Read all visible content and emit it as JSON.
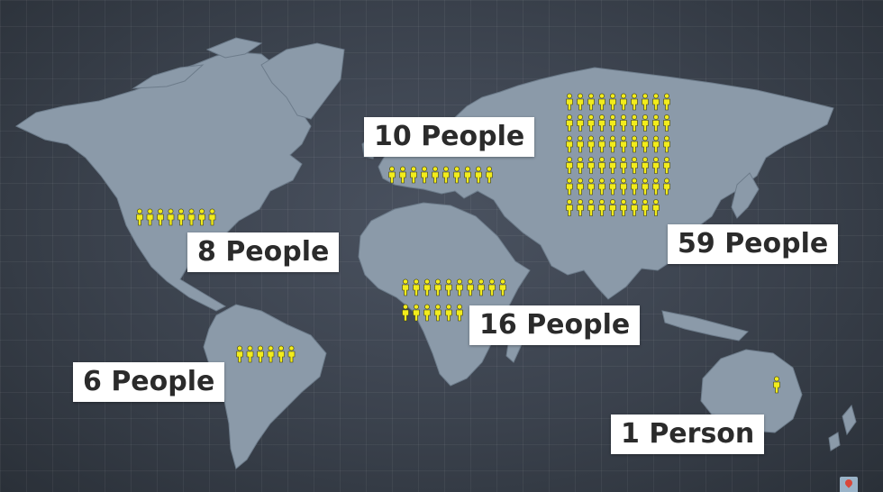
{
  "colors": {
    "person_fill": "#f2ec1c",
    "person_stroke": "#3a3a10",
    "land": "#8b9aa9",
    "background": "#3a414c"
  },
  "icons": {
    "person": "person-icon",
    "map_pin": "map-pin-icon"
  },
  "regions": [
    {
      "id": "north-america",
      "label": "8 People",
      "count": 8
    },
    {
      "id": "europe",
      "label": "10 People",
      "count": 10
    },
    {
      "id": "asia",
      "label": "59 People",
      "count": 59
    },
    {
      "id": "africa",
      "label": "16 People",
      "count": 16
    },
    {
      "id": "south-america",
      "label": "6 People",
      "count": 6
    },
    {
      "id": "oceania",
      "label": "1 Person",
      "count": 1
    }
  ]
}
